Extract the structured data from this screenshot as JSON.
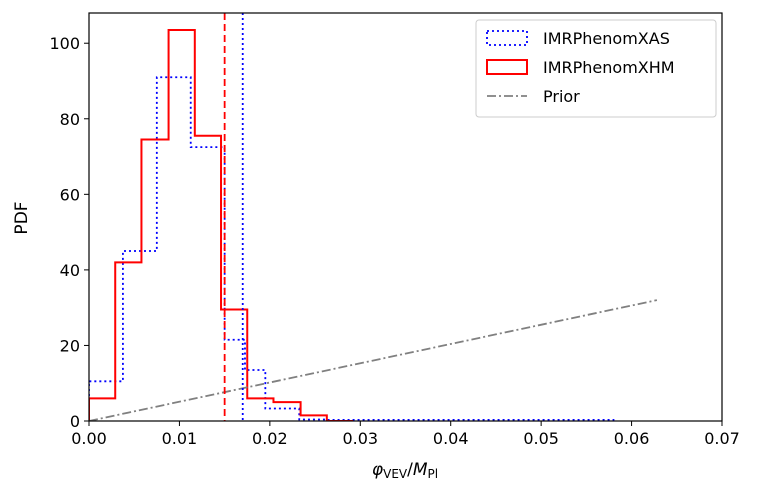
{
  "chart_data": {
    "type": "histogram",
    "xlabel": {
      "main": "φ",
      "main_sub": "VEV",
      "sep": "/",
      "den": "M",
      "den_sub": "Pl"
    },
    "ylabel": "PDF",
    "xlim": [
      0,
      0.07
    ],
    "ylim": [
      0,
      108
    ],
    "xticks": [
      "0.00",
      "0.01",
      "0.02",
      "0.03",
      "0.04",
      "0.05",
      "0.06",
      "0.07"
    ],
    "yticks": [
      "0",
      "20",
      "40",
      "60",
      "80",
      "100"
    ],
    "legend_position": "top-right",
    "series": [
      {
        "name": "IMRPhenomXAS",
        "style": "dotted",
        "color": "#0000ff",
        "bin_edges": [
          0.0,
          0.00375,
          0.0075,
          0.01125,
          0.015,
          0.01725,
          0.0195,
          0.02325,
          0.02625,
          0.058
        ],
        "values": [
          10.5,
          45,
          91,
          72.5,
          21.5,
          13.5,
          3.3,
          0.4,
          0.3
        ]
      },
      {
        "name": "IMRPhenomXHM",
        "style": "solid",
        "color": "#ff0000",
        "bin_edges": [
          0.0,
          0.0029,
          0.0058,
          0.0088,
          0.0117,
          0.0146,
          0.0175,
          0.0204,
          0.0234,
          0.0263,
          0.0292
        ],
        "values": [
          6,
          42,
          74.5,
          103.5,
          75.5,
          29.5,
          6,
          5,
          1.5,
          0
        ]
      },
      {
        "name": "Prior",
        "style": "dashdot",
        "color": "#808080",
        "points": [
          [
            0,
            0
          ],
          [
            0.0628,
            32
          ]
        ]
      }
    ],
    "vlines": [
      {
        "x": 0.015,
        "color": "#ff0000",
        "style": "dashed"
      },
      {
        "x": 0.017,
        "color": "#0000ff",
        "style": "dotted"
      }
    ]
  }
}
